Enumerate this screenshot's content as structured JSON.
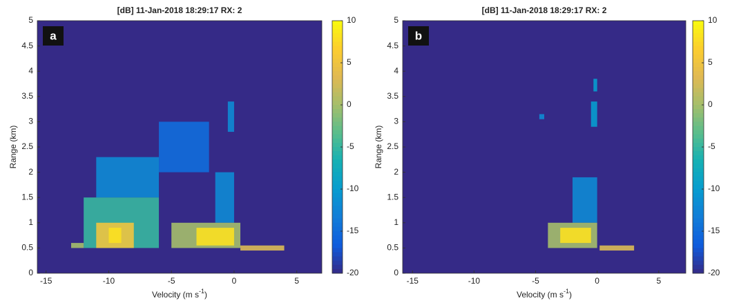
{
  "chart_data": [
    {
      "type": "heatmap",
      "title": "[dB] 11-Jan-2018 18:29:17 RX: 2",
      "panel_label": "a",
      "xlabel": [
        "Velocity (m s",
        "-1",
        ")"
      ],
      "ylabel": "Range (km)",
      "xlim": [
        -15.7,
        7
      ],
      "ylim": [
        0,
        5
      ],
      "xticks": [
        -15,
        -10,
        -5,
        0,
        5
      ],
      "yticks": [
        0,
        0.5,
        1,
        1.5,
        2,
        2.5,
        3,
        3.5,
        4,
        4.5,
        5
      ],
      "clim": [
        -20,
        10
      ],
      "cticks": [
        10,
        5,
        0,
        -5,
        -10,
        -15,
        -20
      ],
      "background": -20,
      "cells": [
        {
          "x": [
            -6,
            -2
          ],
          "y": [
            2,
            3
          ],
          "value": -15
        },
        {
          "x": [
            -11,
            -6
          ],
          "y": [
            1.5,
            2.3
          ],
          "value": -12
        },
        {
          "x": [
            -12,
            -6
          ],
          "y": [
            0.5,
            1.5
          ],
          "value": -5
        },
        {
          "x": [
            -13,
            -12
          ],
          "y": [
            0.5,
            0.6
          ],
          "value": 0
        },
        {
          "x": [
            -11,
            -8
          ],
          "y": [
            0.5,
            1
          ],
          "value": 5
        },
        {
          "x": [
            -10,
            -9
          ],
          "y": [
            0.6,
            0.9
          ],
          "value": 8
        },
        {
          "x": [
            -1.5,
            0
          ],
          "y": [
            1,
            2
          ],
          "value": -12
        },
        {
          "x": [
            -0.5,
            0
          ],
          "y": [
            2.8,
            3.4
          ],
          "value": -12
        },
        {
          "x": [
            -5,
            0.5
          ],
          "y": [
            0.5,
            1
          ],
          "value": 0
        },
        {
          "x": [
            -3,
            0
          ],
          "y": [
            0.55,
            0.9
          ],
          "value": 8
        },
        {
          "x": [
            0.5,
            4
          ],
          "y": [
            0.45,
            0.55
          ],
          "value": 3
        }
      ]
    },
    {
      "type": "heatmap",
      "title": "[dB] 11-Jan-2018 18:29:17 RX: 2",
      "panel_label": "b",
      "xlabel": [
        "Velocity (m s",
        "-1",
        ")"
      ],
      "ylabel": "Range (km)",
      "xlim": [
        -15.8,
        7.2
      ],
      "ylim": [
        0,
        5
      ],
      "xticks": [
        -15,
        -10,
        -5,
        0,
        5
      ],
      "yticks": [
        0,
        0.5,
        1,
        1.5,
        2,
        2.5,
        3,
        3.5,
        4,
        4.5,
        5
      ],
      "clim": [
        -20,
        10
      ],
      "cticks": [
        10,
        5,
        0,
        -5,
        -10,
        -15,
        -20
      ],
      "background": -20,
      "cells": [
        {
          "x": [
            -2,
            0
          ],
          "y": [
            1,
            1.9
          ],
          "value": -12
        },
        {
          "x": [
            -0.5,
            0
          ],
          "y": [
            2.9,
            3.4
          ],
          "value": -10
        },
        {
          "x": [
            -0.3,
            0
          ],
          "y": [
            3.6,
            3.85
          ],
          "value": -10
        },
        {
          "x": [
            -4.7,
            -4.3
          ],
          "y": [
            3.05,
            3.15
          ],
          "value": -12
        },
        {
          "x": [
            -4,
            0
          ],
          "y": [
            0.5,
            1
          ],
          "value": 0
        },
        {
          "x": [
            -3,
            -0.5
          ],
          "y": [
            0.6,
            0.9
          ],
          "value": 8
        },
        {
          "x": [
            0.2,
            3
          ],
          "y": [
            0.45,
            0.55
          ],
          "value": 3
        }
      ]
    }
  ]
}
